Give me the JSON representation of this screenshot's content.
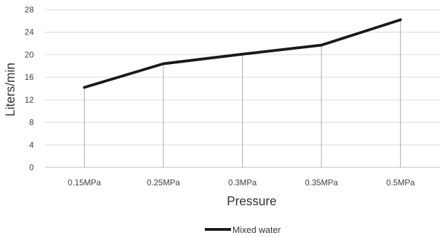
{
  "chart_data": {
    "type": "line",
    "categories": [
      "0.15MPa",
      "0.25MPa",
      "0.3MPa",
      "0.35MPa",
      "0.5MPa"
    ],
    "series": [
      {
        "name": "Mixed water",
        "values": [
          14.2,
          18.4,
          20.1,
          21.7,
          26.2
        ],
        "color": "#1a1a1a"
      }
    ],
    "xlabel": "Pressure",
    "ylabel": "Liters/min",
    "ylim": [
      0,
      28
    ],
    "yticks": [
      0,
      4,
      8,
      12,
      16,
      20,
      24,
      28
    ],
    "grid": true,
    "drop_lines": true,
    "legend": "bottom"
  }
}
